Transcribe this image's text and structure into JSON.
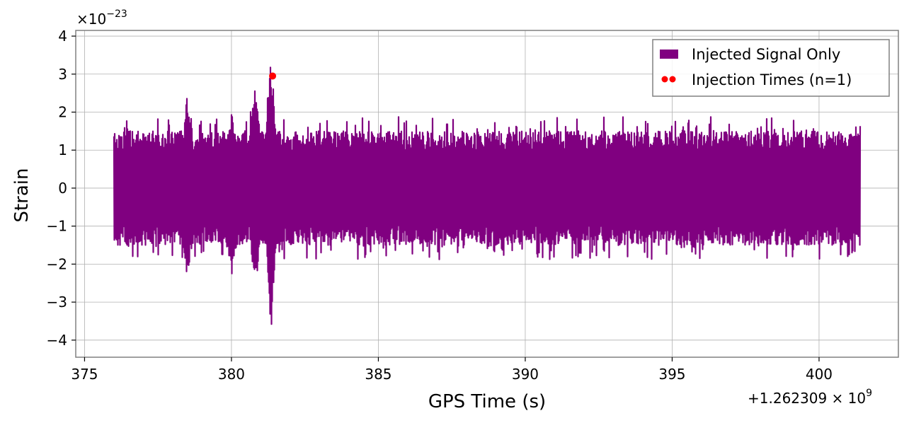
{
  "chart_data": {
    "type": "line",
    "title": "",
    "xlabel": "GPS Time (s)",
    "ylabel": "Strain",
    "x_offset_label": "+1.262309 × 10",
    "x_offset_exponent": "9",
    "y_multiplier_label": "×10",
    "y_multiplier_exponent": "−23",
    "xlim": [
      374.7,
      402.7
    ],
    "ylim": [
      -4.45,
      4.15
    ],
    "x_ticks": [
      375,
      380,
      385,
      390,
      395,
      400
    ],
    "x_tick_labels": [
      "375",
      "380",
      "385",
      "390",
      "395",
      "400"
    ],
    "y_ticks": [
      4,
      3,
      2,
      1,
      0,
      -1,
      -2,
      -3,
      -4
    ],
    "y_tick_labels": [
      "4",
      "3",
      "2",
      "1",
      "0",
      "−1",
      "−2",
      "−3",
      "−4"
    ],
    "grid": true,
    "legend_position": "top-right",
    "series": [
      {
        "name": "Injected Signal Only",
        "color": "#800080",
        "x_range": [
          376.0,
          401.4
        ],
        "typical_envelope": [
          -1.5,
          1.5
        ],
        "burst_peaks": [
          {
            "x": 378.5,
            "max": 2.5,
            "min": -2.5
          },
          {
            "x": 380.0,
            "max": 2.0,
            "min": -2.5
          },
          {
            "x": 380.8,
            "max": 2.8,
            "min": -2.9
          },
          {
            "x": 381.35,
            "max": 3.7,
            "min": -4.05
          }
        ]
      },
      {
        "name": "Injection Times (n=1)",
        "color": "#ff0000",
        "type": "scatter",
        "points": [
          {
            "x": 381.4,
            "y": 2.95
          }
        ]
      }
    ]
  }
}
